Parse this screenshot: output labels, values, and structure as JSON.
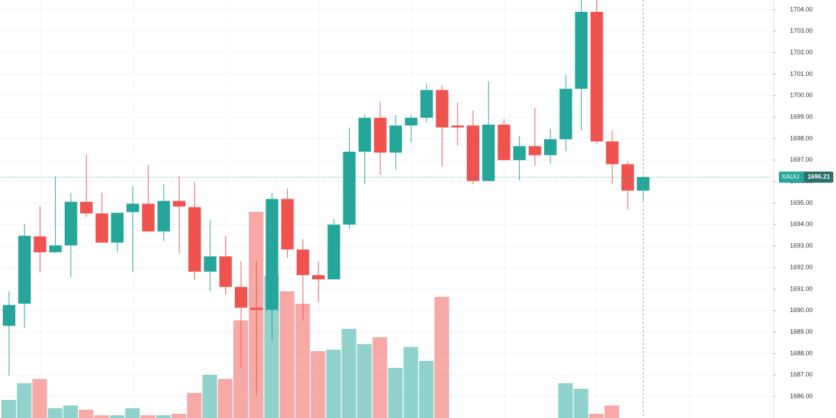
{
  "chart_data": {
    "type": "candlestick",
    "open": [
      1689.29,
      1690.32,
      1693.45,
      1692.71,
      1693.03,
      1695.06,
      1694.52,
      1693.16,
      1694.58,
      1694.97,
      1693.68,
      1695.1,
      1694.81,
      1691.81,
      1692.52,
      1691.1,
      1690.13,
      1690.03,
      1695.19,
      1692.84,
      1691.65,
      1691.45,
      1694.0,
      1697.39,
      1698.97,
      1697.35,
      1698.61,
      1698.97,
      1700.26,
      1698.61,
      1698.61,
      1696.03,
      1698.65,
      1697.0,
      1697.65,
      1697.23,
      1697.97,
      1700.32,
      1703.9,
      1697.87,
      1696.81,
      1695.58
    ],
    "high": [
      1690.9,
      1694.03,
      1694.87,
      1696.23,
      1695.48,
      1697.26,
      1695.48,
      1694.55,
      1695.77,
      1696.77,
      1695.87,
      1696.23,
      1695.97,
      1694.19,
      1693.45,
      1692.29,
      1692.29,
      1695.48,
      1695.68,
      1693.32,
      1692.29,
      1694.26,
      1698.52,
      1699.13,
      1699.71,
      1699.1,
      1699.1,
      1700.52,
      1700.48,
      1699.68,
      1699.32,
      1700.68,
      1698.9,
      1698.13,
      1699.42,
      1698.45,
      1700.97,
      1704.45,
      1704.45,
      1698.39,
      1696.97,
      1696.21
    ],
    "low": [
      1686.97,
      1689.19,
      1691.77,
      1692.68,
      1691.55,
      1694.35,
      1693.16,
      1692.68,
      1691.81,
      1693.68,
      1693.23,
      1692.68,
      1691.42,
      1690.9,
      1690.74,
      1687.35,
      1686.06,
      1688.61,
      1692.45,
      1689.52,
      1690.39,
      1691.45,
      1693.81,
      1695.87,
      1696.32,
      1696.55,
      1697.84,
      1698.77,
      1696.71,
      1697.68,
      1695.87,
      1696.03,
      1697.0,
      1696.06,
      1696.74,
      1696.84,
      1697.42,
      1698.39,
      1697.77,
      1695.9,
      1694.71,
      1695.1
    ],
    "close": [
      1690.26,
      1693.48,
      1692.71,
      1693.03,
      1695.06,
      1694.52,
      1693.16,
      1694.55,
      1694.97,
      1693.68,
      1695.1,
      1694.84,
      1691.81,
      1692.52,
      1691.1,
      1690.13,
      1690.03,
      1695.19,
      1692.84,
      1691.65,
      1691.45,
      1694.0,
      1697.39,
      1698.97,
      1697.35,
      1698.61,
      1698.97,
      1700.26,
      1698.52,
      1698.52,
      1696.03,
      1698.65,
      1697.0,
      1697.65,
      1697.23,
      1697.97,
      1700.32,
      1703.9,
      1697.87,
      1696.81,
      1695.58,
      1696.21
    ],
    "volume": [
      13,
      25,
      28,
      7,
      9,
      6,
      2,
      2,
      7,
      2,
      2,
      3,
      18,
      31,
      28,
      70,
      148,
      102,
      91,
      82,
      48,
      49,
      64,
      53,
      58,
      36,
      51,
      41,
      87,
      null,
      null,
      null,
      null,
      null,
      null,
      null,
      25,
      21,
      3,
      9,
      null,
      null
    ],
    "vlim": [
      0,
      300
    ],
    "up_color": "#26a69a",
    "down_color": "#ef5350",
    "ylim": [
      1685,
      1704.45
    ],
    "yticks": [
      {
        "value": 1686,
        "label": "1686.00"
      },
      {
        "value": 1687,
        "label": "1687.00"
      },
      {
        "value": 1688,
        "label": "1688.00"
      },
      {
        "value": 1689,
        "label": "1689.00"
      },
      {
        "value": 1690,
        "label": "1690.00"
      },
      {
        "value": 1691,
        "label": "1691.00"
      },
      {
        "value": 1692,
        "label": "1692.00"
      },
      {
        "value": 1693,
        "label": "1693.00"
      },
      {
        "value": 1694,
        "label": "1694.00"
      },
      {
        "value": 1695,
        "label": "1695.00"
      },
      {
        "value": 1696,
        "label": "1696.00"
      },
      {
        "value": 1697,
        "label": "1697.00"
      },
      {
        "value": 1698,
        "label": "1698.00"
      },
      {
        "value": 1699,
        "label": "1699.00"
      },
      {
        "value": 1700,
        "label": "1700.00"
      },
      {
        "value": 1701,
        "label": "1701.00"
      },
      {
        "value": 1702,
        "label": "1702.00"
      },
      {
        "value": 1703,
        "label": "1703.00"
      },
      {
        "value": 1704,
        "label": "1704.00"
      }
    ],
    "grid": true,
    "symbol": "XAUU",
    "last_price": {
      "value": 1696.21,
      "label": "1696.21"
    }
  }
}
